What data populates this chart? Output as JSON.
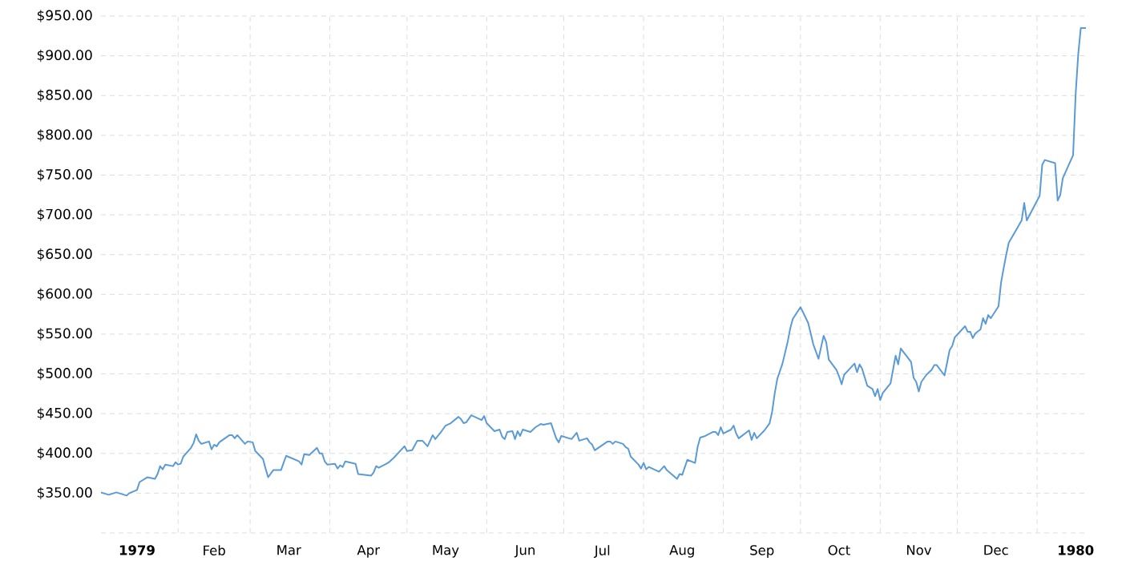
{
  "chart_data": {
    "type": "line",
    "color": "#5b9bd5",
    "grid": true,
    "xlim": [
      "1979-01-02",
      "1980-01-20"
    ],
    "ylim": [
      300,
      950
    ],
    "xticks": [
      {
        "value": "1979-01-16",
        "label": "1979"
      },
      {
        "value": "1979-02-01",
        "label": null
      },
      {
        "value": "1979-02-15",
        "label": "Feb"
      },
      {
        "value": "1979-03-01",
        "label": null
      },
      {
        "value": "1979-03-16",
        "label": "Mar"
      },
      {
        "value": "1979-04-01",
        "label": null
      },
      {
        "value": "1979-04-16",
        "label": "Apr"
      },
      {
        "value": "1979-05-01",
        "label": null
      },
      {
        "value": "1979-05-16",
        "label": "May"
      },
      {
        "value": "1979-06-01",
        "label": null
      },
      {
        "value": "1979-06-16",
        "label": "Jun"
      },
      {
        "value": "1979-07-01",
        "label": null
      },
      {
        "value": "1979-07-16",
        "label": "Jul"
      },
      {
        "value": "1979-08-01",
        "label": null
      },
      {
        "value": "1979-08-16",
        "label": "Aug"
      },
      {
        "value": "1979-09-01",
        "label": null
      },
      {
        "value": "1979-09-16",
        "label": "Sep"
      },
      {
        "value": "1979-10-01",
        "label": null
      },
      {
        "value": "1979-10-16",
        "label": "Oct"
      },
      {
        "value": "1979-11-01",
        "label": null
      },
      {
        "value": "1979-11-16",
        "label": "Nov"
      },
      {
        "value": "1979-12-01",
        "label": null
      },
      {
        "value": "1979-12-16",
        "label": "Dec"
      },
      {
        "value": "1980-01-01",
        "label": null
      },
      {
        "value": "1980-01-16",
        "label": "1980"
      }
    ],
    "yticks": [
      {
        "value": 300,
        "label": null
      },
      {
        "value": 350,
        "label": "$350.00"
      },
      {
        "value": 400,
        "label": "$400.00"
      },
      {
        "value": 450,
        "label": "$450.00"
      },
      {
        "value": 500,
        "label": "$500.00"
      },
      {
        "value": 550,
        "label": "$550.00"
      },
      {
        "value": 600,
        "label": "$600.00"
      },
      {
        "value": 650,
        "label": "$650.00"
      },
      {
        "value": 700,
        "label": "$700.00"
      },
      {
        "value": 750,
        "label": "$750.00"
      },
      {
        "value": 800,
        "label": "$800.00"
      },
      {
        "value": 850,
        "label": "$850.00"
      },
      {
        "value": 900,
        "label": "$900.00"
      },
      {
        "value": 950,
        "label": "$950.00"
      }
    ],
    "x": [
      "1979-01-02",
      "1979-01-05",
      "1979-01-08",
      "1979-01-10",
      "1979-01-12",
      "1979-01-13",
      "1979-01-16",
      "1979-01-17",
      "1979-01-20",
      "1979-01-23",
      "1979-01-24",
      "1979-01-25",
      "1979-01-26",
      "1979-01-27",
      "1979-01-30",
      "1979-01-31",
      "1979-02-01",
      "1979-02-02",
      "1979-02-03",
      "1979-02-06",
      "1979-02-07",
      "1979-02-08",
      "1979-02-09",
      "1979-02-10",
      "1979-02-13",
      "1979-02-14",
      "1979-02-15",
      "1979-02-16",
      "1979-02-17",
      "1979-02-21",
      "1979-02-22",
      "1979-02-23",
      "1979-02-24",
      "1979-02-27",
      "1979-02-28",
      "1979-03-02",
      "1979-03-03",
      "1979-03-06",
      "1979-03-07",
      "1979-03-08",
      "1979-03-10",
      "1979-03-13",
      "1979-03-14",
      "1979-03-15",
      "1979-03-20",
      "1979-03-21",
      "1979-03-22",
      "1979-03-24",
      "1979-03-27",
      "1979-03-28",
      "1979-03-29",
      "1979-03-30",
      "1979-03-31",
      "1979-04-03",
      "1979-04-04",
      "1979-04-05",
      "1979-04-06",
      "1979-04-07",
      "1979-04-11",
      "1979-04-12",
      "1979-04-17",
      "1979-04-18",
      "1979-04-19",
      "1979-04-20",
      "1979-04-23",
      "1979-04-24",
      "1979-04-26",
      "1979-04-28",
      "1979-04-30",
      "1979-05-01",
      "1979-05-03",
      "1979-05-05",
      "1979-05-07",
      "1979-05-09",
      "1979-05-11",
      "1979-05-12",
      "1979-05-14",
      "1979-05-16",
      "1979-05-18",
      "1979-05-21",
      "1979-05-22",
      "1979-05-23",
      "1979-05-24",
      "1979-05-26",
      "1979-05-30",
      "1979-05-31",
      "1979-06-01",
      "1979-06-04",
      "1979-06-06",
      "1979-06-07",
      "1979-06-08",
      "1979-06-09",
      "1979-06-11",
      "1979-06-12",
      "1979-06-13",
      "1979-06-14",
      "1979-06-15",
      "1979-06-18",
      "1979-06-20",
      "1979-06-22",
      "1979-06-23",
      "1979-06-26",
      "1979-06-28",
      "1979-06-29",
      "1979-06-30",
      "1979-07-04",
      "1979-07-06",
      "1979-07-07",
      "1979-07-10",
      "1979-07-11",
      "1979-07-12",
      "1979-07-13",
      "1979-07-18",
      "1979-07-19",
      "1979-07-20",
      "1979-07-21",
      "1979-07-24",
      "1979-07-25",
      "1979-07-26",
      "1979-07-27",
      "1979-07-30",
      "1979-07-31",
      "1979-08-01",
      "1979-08-02",
      "1979-08-03",
      "1979-08-07",
      "1979-08-09",
      "1979-08-10",
      "1979-08-14",
      "1979-08-15",
      "1979-08-16",
      "1979-08-18",
      "1979-08-21",
      "1979-08-22",
      "1979-08-23",
      "1979-08-25",
      "1979-08-28",
      "1979-08-29",
      "1979-08-30",
      "1979-08-31",
      "1979-09-01",
      "1979-09-04",
      "1979-09-05",
      "1979-09-06",
      "1979-09-07",
      "1979-09-11",
      "1979-09-12",
      "1979-09-13",
      "1979-09-14",
      "1979-09-17",
      "1979-09-19",
      "1979-09-20",
      "1979-09-21",
      "1979-09-22",
      "1979-09-24",
      "1979-09-26",
      "1979-09-27",
      "1979-09-28",
      "1979-10-01",
      "1979-10-04",
      "1979-10-06",
      "1979-10-08",
      "1979-10-10",
      "1979-10-11",
      "1979-10-12",
      "1979-10-15",
      "1979-10-16",
      "1979-10-17",
      "1979-10-18",
      "1979-10-20",
      "1979-10-22",
      "1979-10-23",
      "1979-10-24",
      "1979-10-25",
      "1979-10-27",
      "1979-10-29",
      "1979-10-30",
      "1979-10-31",
      "1979-11-01",
      "1979-11-02",
      "1979-11-05",
      "1979-11-07",
      "1979-11-08",
      "1979-11-09",
      "1979-11-13",
      "1979-11-14",
      "1979-11-15",
      "1979-11-16",
      "1979-11-17",
      "1979-11-19",
      "1979-11-21",
      "1979-11-22",
      "1979-11-23",
      "1979-11-26",
      "1979-11-28",
      "1979-11-29",
      "1979-11-30",
      "1979-12-04",
      "1979-12-05",
      "1979-12-06",
      "1979-12-07",
      "1979-12-08",
      "1979-12-10",
      "1979-12-11",
      "1979-12-12",
      "1979-12-13",
      "1979-12-14",
      "1979-12-17",
      "1979-12-18",
      "1979-12-19",
      "1979-12-20",
      "1979-12-21",
      "1979-12-26",
      "1979-12-27",
      "1979-12-28",
      "1980-01-02",
      "1980-01-03",
      "1980-01-04",
      "1980-01-08",
      "1980-01-09",
      "1980-01-10",
      "1980-01-11",
      "1980-01-15",
      "1980-01-16",
      "1980-01-17",
      "1980-01-18",
      "1980-01-20"
    ],
    "values": [
      351,
      348,
      351,
      349,
      347,
      350,
      354,
      364,
      370,
      368,
      374,
      384,
      380,
      386,
      384,
      389,
      386,
      387,
      396,
      407,
      413,
      424,
      416,
      412,
      415,
      405,
      411,
      409,
      414,
      423,
      423,
      419,
      423,
      412,
      415,
      414,
      403,
      393,
      381,
      370,
      379,
      379,
      388,
      397,
      390,
      386,
      399,
      398,
      407,
      400,
      400,
      390,
      386,
      387,
      381,
      385,
      383,
      390,
      387,
      374,
      372,
      376,
      384,
      382,
      387,
      389,
      395,
      402,
      409,
      403,
      404,
      416,
      416,
      409,
      423,
      418,
      426,
      435,
      438,
      446,
      443,
      438,
      439,
      448,
      442,
      447,
      438,
      428,
      430,
      421,
      418,
      427,
      428,
      418,
      428,
      422,
      430,
      427,
      433,
      437,
      436,
      438,
      419,
      414,
      422,
      418,
      426,
      416,
      419,
      414,
      411,
      404,
      415,
      415,
      412,
      415,
      412,
      408,
      406,
      396,
      386,
      381,
      388,
      380,
      383,
      377,
      384,
      379,
      368,
      374,
      373,
      392,
      388,
      408,
      420,
      422,
      427,
      427,
      423,
      433,
      425,
      430,
      435,
      425,
      419,
      429,
      417,
      426,
      419,
      429,
      438,
      453,
      476,
      494,
      513,
      540,
      557,
      569,
      584,
      564,
      537,
      519,
      548,
      540,
      518,
      505,
      497,
      487,
      499,
      506,
      513,
      502,
      512,
      506,
      485,
      481,
      472,
      481,
      467,
      476,
      488,
      523,
      512,
      532,
      515,
      495,
      490,
      478,
      490,
      499,
      505,
      511,
      511,
      498,
      530,
      535,
      546,
      560,
      553,
      553,
      545,
      551,
      556,
      570,
      563,
      574,
      570,
      585,
      615,
      633,
      650,
      665,
      693,
      715,
      693,
      724,
      763,
      769,
      765,
      718,
      725,
      746,
      775,
      852,
      902,
      935,
      935
    ]
  }
}
